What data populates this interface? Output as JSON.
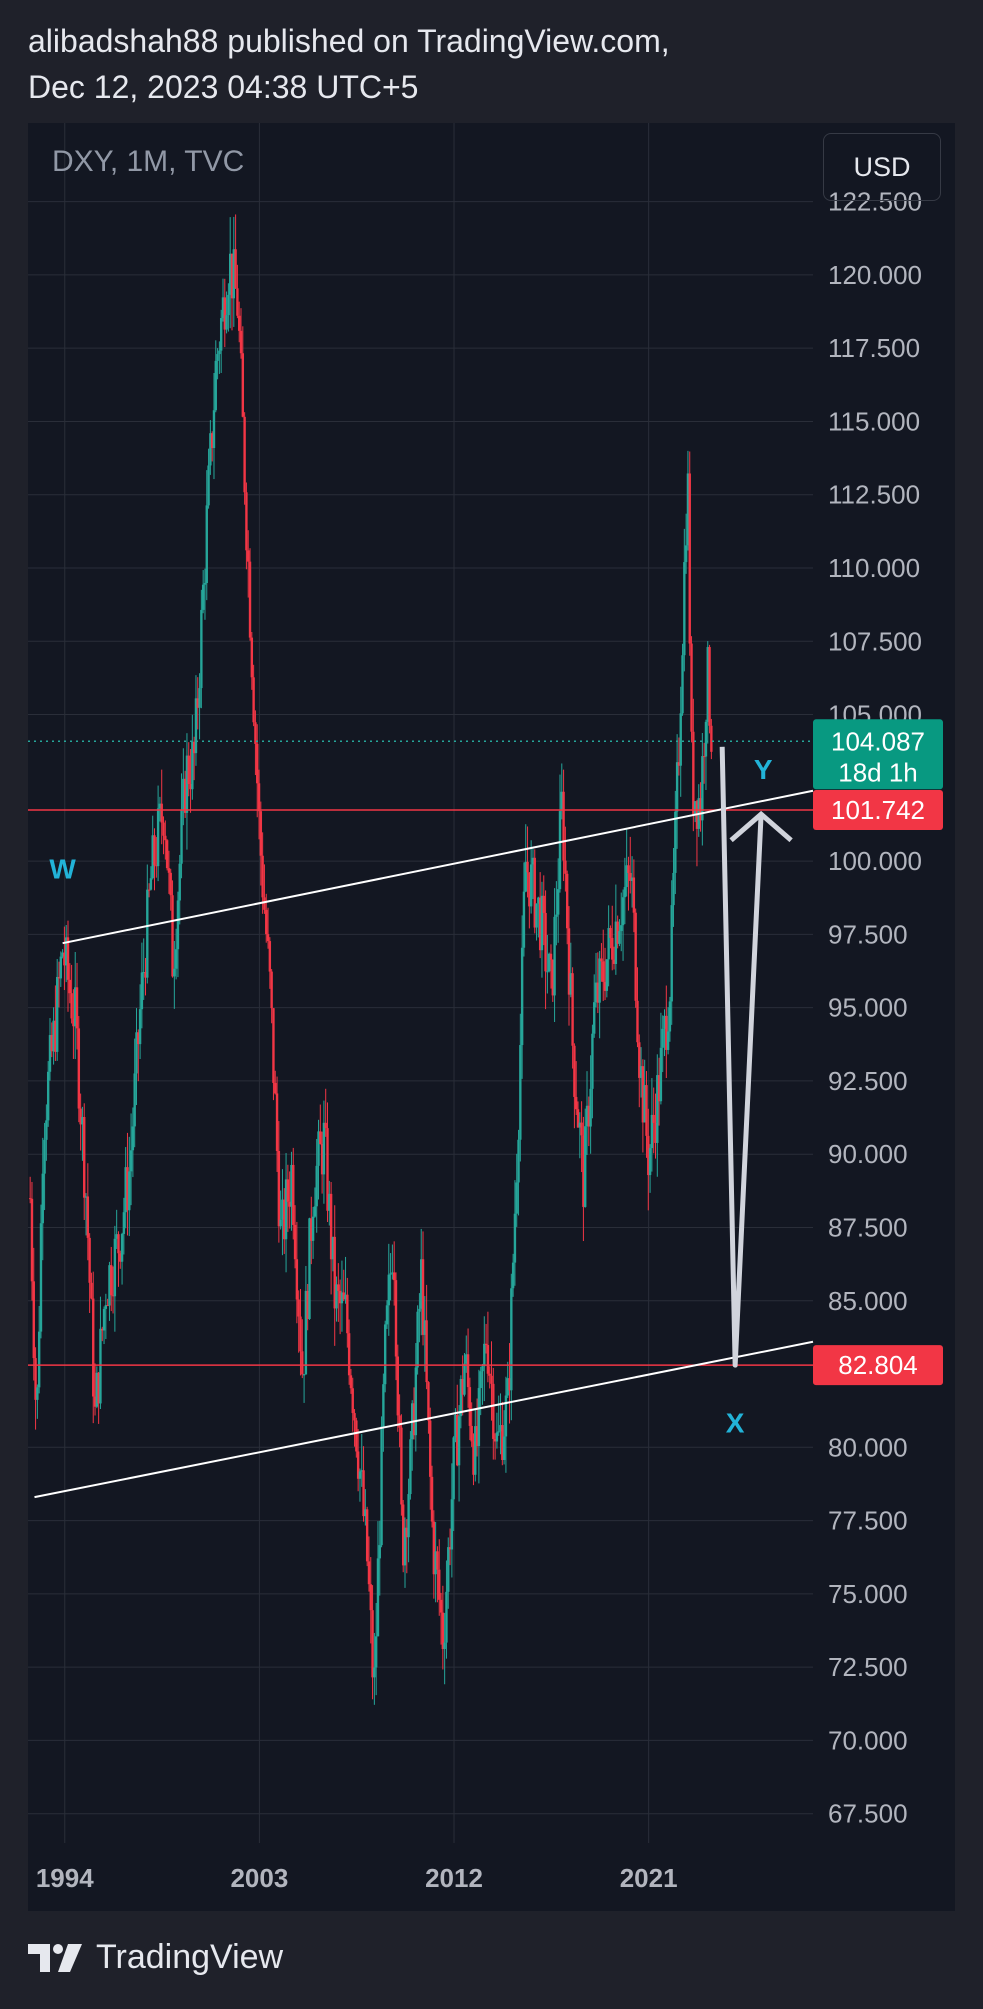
{
  "header": {
    "line1": "alibadshah88 published on TradingView.com,",
    "line2": "Dec 12, 2023 04:38 UTC+5"
  },
  "chart_header": {
    "symbol": "DXY, 1M, TVC",
    "currency_button": "USD"
  },
  "colors": {
    "background": "#131722",
    "page": "#1f212a",
    "up": "#26a69a",
    "down": "#f23645",
    "grid": "#2a2e39",
    "axis_text": "#b2b5be",
    "label_cyan": "#22b3d8"
  },
  "footer": {
    "brand": "TradingView",
    "logo_icon": "tradingview-logo-icon"
  },
  "chart_data": {
    "type": "candlestick",
    "title": "DXY, 1M, TVC",
    "ylim": [
      66.5,
      124.5
    ],
    "y_ticks": [
      "122.500",
      "120.000",
      "117.500",
      "115.000",
      "112.500",
      "110.000",
      "107.500",
      "105.000",
      "100.000",
      "97.500",
      "95.000",
      "92.500",
      "90.000",
      "87.500",
      "85.000",
      "80.000",
      "77.500",
      "75.000",
      "72.500",
      "70.000",
      "67.500"
    ],
    "x_ticks": [
      "1994",
      "2003",
      "2012",
      "2021"
    ],
    "x_tick_years": [
      1994,
      2003,
      2012,
      2021
    ],
    "xlim": [
      1992.3,
      2028.6
    ],
    "series": [
      {
        "name": "DXY",
        "points": [
          [
            1992.4,
            88.5
          ],
          [
            1992.7,
            80.5
          ],
          [
            1993.0,
            91.0
          ],
          [
            1993.5,
            94.0
          ],
          [
            1993.9,
            97.0
          ],
          [
            1994.5,
            94.5
          ],
          [
            1995.0,
            88.5
          ],
          [
            1995.4,
            81.0
          ],
          [
            1995.9,
            85.5
          ],
          [
            1996.5,
            87.0
          ],
          [
            1997.0,
            89.5
          ],
          [
            1997.5,
            95.0
          ],
          [
            1998.0,
            99.5
          ],
          [
            1998.6,
            102.0
          ],
          [
            1999.0,
            96.5
          ],
          [
            1999.6,
            103.0
          ],
          [
            2000.0,
            103.5
          ],
          [
            2000.6,
            112.0
          ],
          [
            2001.0,
            117.0
          ],
          [
            2001.6,
            120.5
          ],
          [
            2002.0,
            119.0
          ],
          [
            2002.6,
            108.0
          ],
          [
            2003.0,
            101.0
          ],
          [
            2003.5,
            95.5
          ],
          [
            2004.0,
            87.0
          ],
          [
            2004.5,
            89.5
          ],
          [
            2005.0,
            82.5
          ],
          [
            2005.5,
            89.0
          ],
          [
            2006.0,
            90.5
          ],
          [
            2006.5,
            85.0
          ],
          [
            2007.0,
            84.5
          ],
          [
            2007.5,
            80.5
          ],
          [
            2008.0,
            76.0
          ],
          [
            2008.3,
            71.5
          ],
          [
            2008.8,
            83.0
          ],
          [
            2009.2,
            87.5
          ],
          [
            2009.6,
            76.5
          ],
          [
            2010.0,
            79.5
          ],
          [
            2010.5,
            86.0
          ],
          [
            2011.0,
            77.0
          ],
          [
            2011.5,
            73.5
          ],
          [
            2012.0,
            79.5
          ],
          [
            2012.5,
            83.0
          ],
          [
            2013.0,
            79.5
          ],
          [
            2013.5,
            84.0
          ],
          [
            2014.0,
            80.0
          ],
          [
            2014.5,
            81.5
          ],
          [
            2015.0,
            92.0
          ],
          [
            2015.3,
            100.0
          ],
          [
            2016.0,
            98.0
          ],
          [
            2016.5,
            95.5
          ],
          [
            2017.0,
            102.0
          ],
          [
            2017.5,
            93.5
          ],
          [
            2018.0,
            89.0
          ],
          [
            2018.5,
            95.0
          ],
          [
            2019.0,
            96.5
          ],
          [
            2019.7,
            98.5
          ],
          [
            2020.2,
            99.5
          ],
          [
            2020.6,
            93.0
          ],
          [
            2021.0,
            89.9
          ],
          [
            2021.5,
            92.5
          ],
          [
            2022.0,
            96.0
          ],
          [
            2022.4,
            104.0
          ],
          [
            2022.8,
            113.5
          ],
          [
            2023.0,
            102.5
          ],
          [
            2023.4,
            102.0
          ],
          [
            2023.7,
            106.5
          ],
          [
            2023.95,
            104.087
          ]
        ]
      }
    ],
    "current_price": {
      "value": "104.087",
      "countdown": "18d 1h",
      "y": 104.087
    },
    "horizontal_levels": [
      {
        "label": "101.742",
        "y": 101.742
      },
      {
        "label": "82.804",
        "y": 82.804
      }
    ],
    "trendlines": [
      {
        "name": "upper",
        "from": [
          1993.9,
          97.2
        ],
        "to": [
          2028.6,
          102.4
        ]
      },
      {
        "name": "lower",
        "from": [
          1992.6,
          78.3
        ],
        "to": [
          2028.6,
          83.6
        ]
      }
    ],
    "projection": [
      [
        2024.4,
        103.9
      ],
      [
        2025.0,
        82.804
      ],
      [
        2026.2,
        101.6
      ]
    ],
    "wave_labels": [
      {
        "text": "W",
        "x": 1993.9,
        "y": 99.4
      },
      {
        "text": "X",
        "x": 2025.0,
        "y": 80.5
      },
      {
        "text": "Y",
        "x": 2026.3,
        "y": 102.8
      }
    ]
  }
}
